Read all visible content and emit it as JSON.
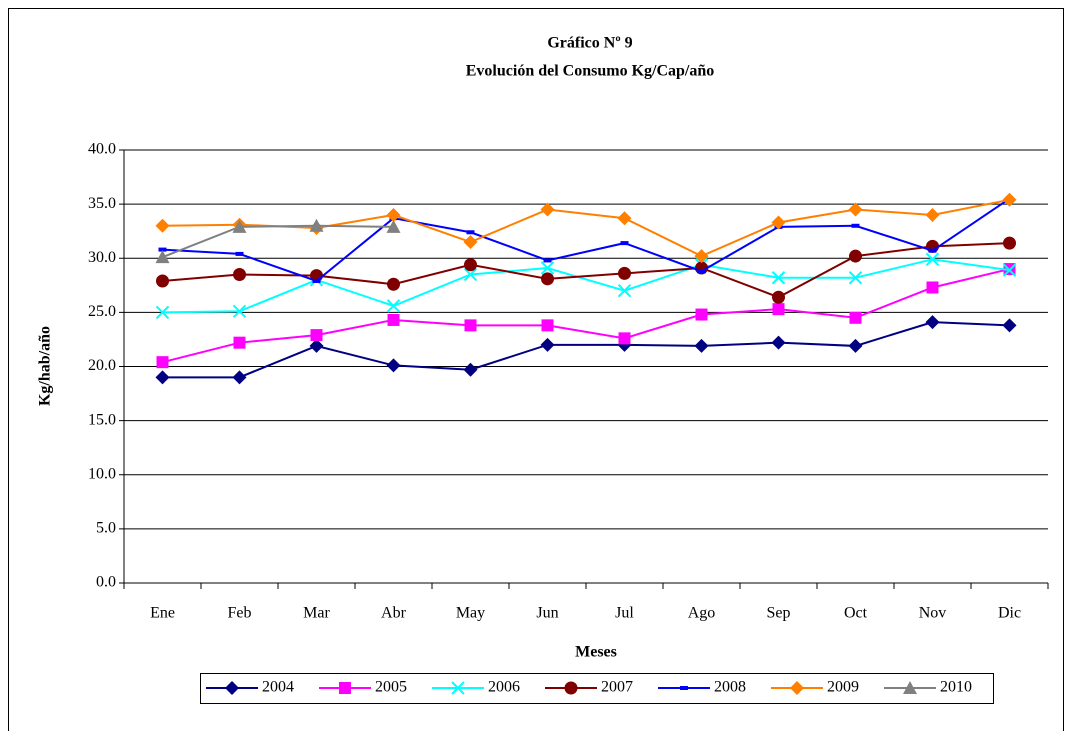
{
  "chart_data": {
    "type": "line",
    "title": "Gráfico Nº 9",
    "subtitle": "Evolución del Consumo  Kg/Cap/año",
    "x_label": "Meses",
    "y_label": "Kg/hab/año",
    "categories": [
      "Ene",
      "Feb",
      "Mar",
      "Abr",
      "May",
      "Jun",
      "Jul",
      "Ago",
      "Sep",
      "Oct",
      "Nov",
      "Dic"
    ],
    "ylim": [
      0,
      40
    ],
    "yticks": [
      {
        "value": 0,
        "label": "0.0"
      },
      {
        "value": 5,
        "label": "5.0"
      },
      {
        "value": 10,
        "label": "10.0"
      },
      {
        "value": 15,
        "label": "15.0"
      },
      {
        "value": 20,
        "label": "20.0"
      },
      {
        "value": 25,
        "label": "25.0"
      },
      {
        "value": 30,
        "label": "30.0"
      },
      {
        "value": 35,
        "label": "35.0"
      },
      {
        "value": 40,
        "label": "40.0"
      }
    ],
    "grid": true,
    "legend": "bottom",
    "series": [
      {
        "name": "2004",
        "color": "#000080",
        "marker": "diamond",
        "values": [
          19.0,
          19.0,
          21.9,
          20.1,
          19.7,
          22.0,
          22.0,
          21.9,
          22.2,
          21.9,
          24.1,
          23.8
        ]
      },
      {
        "name": "2005",
        "color": "#ff00ff",
        "marker": "square",
        "values": [
          20.4,
          22.2,
          22.9,
          24.3,
          23.8,
          23.8,
          22.6,
          24.8,
          25.3,
          24.5,
          27.3,
          29.0
        ]
      },
      {
        "name": "2006",
        "color": "#00ffff",
        "marker": "x",
        "values": [
          25.0,
          25.1,
          28.0,
          25.6,
          28.5,
          29.1,
          27.0,
          29.4,
          28.2,
          28.2,
          29.9,
          28.9
        ]
      },
      {
        "name": "2007",
        "color": "#800000",
        "marker": "circle",
        "values": [
          27.9,
          28.5,
          28.4,
          27.6,
          29.4,
          28.1,
          28.6,
          29.1,
          26.4,
          30.2,
          31.1,
          31.4
        ]
      },
      {
        "name": "2008",
        "color": "#0000ff",
        "marker": "dash",
        "values": [
          30.8,
          30.4,
          27.9,
          33.7,
          32.4,
          29.8,
          31.4,
          28.8,
          32.9,
          33.0,
          30.7,
          35.5
        ]
      },
      {
        "name": "2009",
        "color": "#ff7f00",
        "marker": "diamond",
        "values": [
          33.0,
          33.1,
          32.8,
          34.0,
          31.5,
          34.5,
          33.7,
          30.2,
          33.3,
          34.5,
          34.0,
          35.4
        ]
      },
      {
        "name": "2010",
        "color": "#808080",
        "marker": "triangle",
        "values": [
          30.1,
          32.9,
          33.0,
          32.9,
          null,
          null,
          null,
          null,
          null,
          null,
          null,
          null
        ]
      }
    ]
  }
}
